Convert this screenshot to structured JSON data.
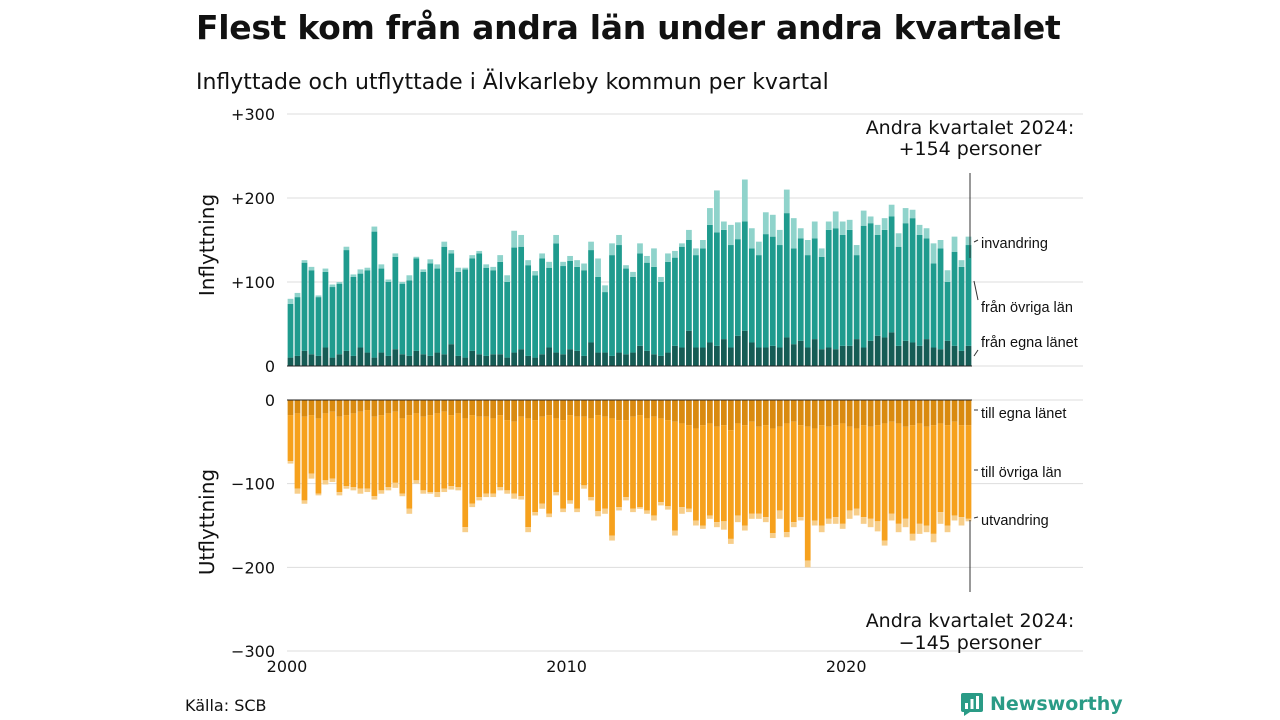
{
  "title": "Flest kom från andra län under andra kvartalet",
  "subtitle": "Inflyttade och utflyttade i Älvkarleby kommun per kvartal",
  "source": "Källa: SCB",
  "brand": "Newsworthy",
  "colors": {
    "in_own": "#165c55",
    "in_other": "#1f9b8e",
    "in_imm": "#8fd3cb",
    "out_own": "#d98a10",
    "out_other": "#f6a11d",
    "out_emig": "#f7ce8a",
    "grid": "#dddddd",
    "brand": "#2a9b86"
  },
  "chart_data": {
    "type": "bar",
    "stacked": true,
    "x_start": "2000 Q1",
    "x_end": "2024 Q2",
    "x_ticks": [
      "2000",
      "2010",
      "2020"
    ],
    "panels": [
      {
        "ylabel": "Inflyttning",
        "ylim": [
          0,
          300
        ],
        "y_ticks": [
          "0",
          "+100",
          "+200",
          "+300"
        ],
        "y_tick_values": [
          0,
          100,
          200,
          300
        ],
        "series": [
          {
            "name": "från egna länet",
            "values": [
              10,
              12,
              18,
              14,
              12,
              22,
              10,
              14,
              18,
              12,
              22,
              16,
              10,
              16,
              12,
              20,
              14,
              12,
              18,
              14,
              12,
              16,
              14,
              26,
              12,
              10,
              18,
              14,
              12,
              14,
              14,
              10,
              16,
              20,
              12,
              10,
              14,
              22,
              16,
              14,
              20,
              18,
              12,
              28,
              16,
              16,
              12,
              16,
              14,
              16,
              24,
              18,
              14,
              12,
              16,
              24,
              22,
              42,
              22,
              22,
              28,
              24,
              32,
              22,
              36,
              42,
              28,
              22,
              22,
              24,
              22,
              34,
              26,
              30,
              22,
              32,
              20,
              22,
              20,
              24,
              24,
              32,
              22,
              30,
              36,
              34,
              40,
              24,
              30,
              28,
              24,
              32,
              22,
              20,
              30,
              24,
              18,
              24
            ]
          },
          {
            "name": "från övriga län",
            "values": [
              64,
              70,
              105,
              100,
              70,
              90,
              84,
              84,
              120,
              94,
              88,
              98,
              150,
              100,
              88,
              110,
              84,
              90,
              110,
              98,
              110,
              100,
              128,
              108,
              100,
              105,
              110,
              120,
              105,
              100,
              110,
              90,
              125,
              122,
              108,
              98,
              114,
              95,
              130,
              105,
              105,
              100,
              102,
              110,
              90,
              72,
              120,
              128,
              102,
              90,
              110,
              105,
              104,
              88,
              108,
              105,
              120,
              108,
              110,
              118,
              140,
              135,
              130,
              122,
              115,
              130,
              112,
              110,
              135,
              130,
              122,
              148,
              114,
              122,
              110,
              120,
              110,
              140,
              144,
              132,
              138,
              100,
              145,
              140,
              120,
              128,
              138,
              118,
              140,
              148,
              132,
              120,
              100,
              120,
              70,
              112,
              100,
              120
            ]
          },
          {
            "name": "invandring",
            "values": [
              6,
              5,
              3,
              4,
              2,
              4,
              3,
              2,
              4,
              3,
              5,
              3,
              6,
              5,
              3,
              4,
              2,
              6,
              2,
              3,
              5,
              5,
              6,
              4,
              5,
              2,
              4,
              3,
              4,
              4,
              8,
              8,
              20,
              14,
              6,
              5,
              6,
              7,
              10,
              5,
              6,
              8,
              8,
              10,
              22,
              8,
              14,
              12,
              4,
              6,
              12,
              8,
              22,
              6,
              10,
              8,
              4,
              12,
              8,
              10,
              20,
              50,
              10,
              24,
              20,
              50,
              24,
              16,
              26,
              26,
              18,
              28,
              36,
              12,
              18,
              20,
              10,
              10,
              20,
              16,
              12,
              12,
              18,
              8,
              12,
              14,
              14,
              16,
              18,
              10,
              12,
              12,
              24,
              10,
              14,
              18,
              8,
              10
            ]
          }
        ]
      },
      {
        "ylabel": "Utflyttning",
        "ylim": [
          -300,
          0
        ],
        "y_ticks": [
          "0",
          "−100",
          "−200",
          "−300"
        ],
        "y_tick_values": [
          0,
          -100,
          -200,
          -300
        ],
        "series": [
          {
            "name": "till egna länet",
            "values": [
              -18,
              -16,
              -20,
              -18,
              -22,
              -16,
              -14,
              -20,
              -18,
              -16,
              -14,
              -12,
              -20,
              -18,
              -16,
              -14,
              -22,
              -18,
              -16,
              -20,
              -18,
              -16,
              -14,
              -18,
              -16,
              -22,
              -18,
              -20,
              -20,
              -22,
              -18,
              -24,
              -26,
              -20,
              -22,
              -24,
              -20,
              -18,
              -22,
              -24,
              -18,
              -20,
              -20,
              -22,
              -18,
              -20,
              -22,
              -24,
              -24,
              -20,
              -18,
              -22,
              -20,
              -22,
              -24,
              -26,
              -28,
              -30,
              -34,
              -30,
              -28,
              -32,
              -30,
              -36,
              -28,
              -30,
              -26,
              -32,
              -30,
              -34,
              -32,
              -28,
              -26,
              -30,
              -32,
              -34,
              -30,
              -32,
              -30,
              -28,
              -32,
              -34,
              -30,
              -32,
              -30,
              -28,
              -26,
              -28,
              -32,
              -30,
              -28,
              -32,
              -30,
              -28,
              -30,
              -26,
              -30,
              -30
            ]
          },
          {
            "name": "till övriga län",
            "values": [
              -55,
              -90,
              -100,
              -70,
              -90,
              -80,
              -80,
              -90,
              -85,
              -88,
              -92,
              -94,
              -95,
              -90,
              -88,
              -85,
              -90,
              -112,
              -80,
              -88,
              -92,
              -94,
              -92,
              -85,
              -88,
              -130,
              -106,
              -96,
              -92,
              -90,
              -86,
              -84,
              -86,
              -95,
              -130,
              -110,
              -104,
              -118,
              -88,
              -106,
              -102,
              -110,
              -82,
              -94,
              -115,
              -110,
              -140,
              -104,
              -92,
              -110,
              -110,
              -110,
              -118,
              -100,
              -103,
              -130,
              -100,
              -100,
              -110,
              -120,
              -110,
              -114,
              -115,
              -130,
              -110,
              -120,
              -110,
              -104,
              -110,
              -125,
              -100,
              -130,
              -120,
              -110,
              -160,
              -110,
              -120,
              -110,
              -110,
              -120,
              -100,
              -96,
              -110,
              -110,
              -115,
              -140,
              -110,
              -120,
              -110,
              -130,
              -120,
              -118,
              -130,
              -106,
              -120,
              -112,
              -110,
              -112
            ]
          },
          {
            "name": "utvandring",
            "values": [
              -3,
              -6,
              -4,
              -6,
              -2,
              -5,
              -4,
              -4,
              -3,
              -4,
              -6,
              -4,
              -4,
              -4,
              -4,
              -6,
              -3,
              -6,
              -4,
              -4,
              -2,
              -6,
              -4,
              -4,
              -4,
              -6,
              -4,
              -4,
              -4,
              -4,
              -4,
              -4,
              -6,
              -4,
              -6,
              -4,
              -6,
              -4,
              -4,
              -4,
              -4,
              -4,
              -4,
              -4,
              -6,
              -6,
              -6,
              -4,
              -4,
              -4,
              -2,
              -4,
              -6,
              -4,
              -4,
              -6,
              -8,
              -4,
              -6,
              -4,
              -4,
              -6,
              -10,
              -6,
              -8,
              -6,
              -6,
              -6,
              -6,
              -6,
              -10,
              -6,
              -6,
              -4,
              -8,
              -6,
              -8,
              -6,
              -8,
              -6,
              -10,
              -8,
              -8,
              -10,
              -12,
              -6,
              -8,
              -10,
              -10,
              -8,
              -12,
              -8,
              -10,
              -14,
              -8,
              -6,
              -10,
              -3
            ]
          }
        ]
      }
    ],
    "annotations": [
      {
        "text_line1": "Andra kvartalet 2024:",
        "text_line2": "+154 personer",
        "panel": 0
      },
      {
        "text_line1": "Andra kvartalet 2024:",
        "text_line2": "−145 personer",
        "panel": 1
      }
    ]
  }
}
